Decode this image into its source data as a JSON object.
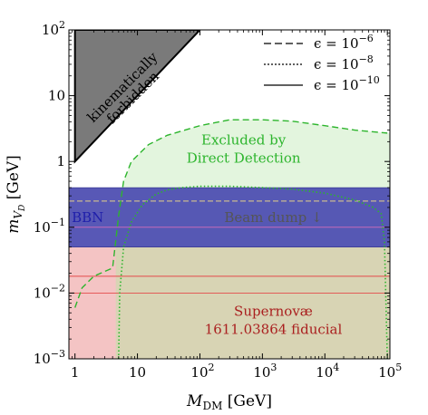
{
  "chart_data": {
    "type": "area",
    "title": "",
    "xlabel_main": "M",
    "xlabel_sub": "DM",
    "xlabel_unit": " [GeV]",
    "ylabel_main": "m",
    "ylabel_sub": "V",
    "ylabel_subsub": "D",
    "ylabel_unit": " [GeV]",
    "x_scale": "log",
    "y_scale": "log",
    "xlim": [
      0.8,
      110000
    ],
    "ylim": [
      0.001,
      100
    ],
    "x_ticks": [
      {
        "value": 1,
        "base": "1",
        "exp": ""
      },
      {
        "value": 10,
        "base": "10",
        "exp": ""
      },
      {
        "value": 100,
        "base": "10",
        "exp": "2"
      },
      {
        "value": 1000,
        "base": "10",
        "exp": "3"
      },
      {
        "value": 10000,
        "base": "10",
        "exp": "4"
      },
      {
        "value": 100000,
        "base": "10",
        "exp": "5"
      }
    ],
    "y_ticks": [
      {
        "value": 0.001,
        "base": "10",
        "exp": "−3"
      },
      {
        "value": 0.01,
        "base": "10",
        "exp": "−2"
      },
      {
        "value": 0.1,
        "base": "10",
        "exp": "−1"
      },
      {
        "value": 1,
        "base": "1",
        "exp": ""
      },
      {
        "value": 10,
        "base": "10",
        "exp": ""
      },
      {
        "value": 100,
        "base": "10",
        "exp": "2"
      }
    ],
    "legend": {
      "placement": "top-right",
      "entries": [
        {
          "style": "dashed",
          "prefix": "ϵ = 10",
          "exp": "−6"
        },
        {
          "style": "dotted",
          "prefix": "ϵ = 10",
          "exp": "−8"
        },
        {
          "style": "solid",
          "prefix": "ϵ = 10",
          "exp": "−10"
        }
      ]
    },
    "regions": [
      {
        "name": "kinematically-forbidden",
        "label_lines": [
          "kinematically",
          "forbidden"
        ],
        "fill": "#7a7a7a",
        "boundary": [
          [
            1,
            100
          ],
          [
            1,
            1
          ],
          [
            100,
            100
          ]
        ]
      },
      {
        "name": "bbn",
        "label": "BBN",
        "fill": "#4a4ab0",
        "y_range": [
          0.05,
          0.4
        ]
      },
      {
        "name": "supernova",
        "label_lines": [
          "Supernovæ",
          "1611.03864 fiducial"
        ],
        "fill": "#f4c4c4",
        "y_range": [
          0.001,
          0.05
        ],
        "internal_lines_y": [
          0.01,
          0.018
        ]
      }
    ],
    "annotations": [
      {
        "name": "direct-detection",
        "label_lines": [
          "Excluded by",
          "Direct Detection"
        ],
        "color": "#2db52d"
      },
      {
        "name": "beam-dump",
        "label": "Beam dump ↓",
        "color": "#555555"
      }
    ],
    "series": [
      {
        "name": "direct-detection-dashed",
        "style": "dashed",
        "color": "#2db52d",
        "points": [
          [
            1,
            0.006
          ],
          [
            1.3,
            0.012
          ],
          [
            2,
            0.018
          ],
          [
            4,
            0.024
          ],
          [
            5,
            0.15
          ],
          [
            6,
            0.5
          ],
          [
            8,
            1.0
          ],
          [
            15,
            1.8
          ],
          [
            30,
            2.5
          ],
          [
            100,
            3.5
          ],
          [
            300,
            4.3
          ],
          [
            1000,
            4.3
          ],
          [
            3000,
            4.1
          ],
          [
            10000,
            3.5
          ],
          [
            30000,
            3.0
          ],
          [
            100000,
            2.7
          ]
        ]
      },
      {
        "name": "direct-detection-dotted",
        "style": "dotted",
        "color": "#2db52d",
        "points": [
          [
            5,
            0.001
          ],
          [
            5.2,
            0.01
          ],
          [
            6,
            0.05
          ],
          [
            8,
            0.12
          ],
          [
            12,
            0.22
          ],
          [
            20,
            0.32
          ],
          [
            30,
            0.37
          ],
          [
            50,
            0.4
          ],
          [
            100,
            0.42
          ],
          [
            300,
            0.42
          ],
          [
            1000,
            0.4
          ],
          [
            3000,
            0.38
          ],
          [
            10000,
            0.33
          ],
          [
            30000,
            0.26
          ],
          [
            60000,
            0.2
          ],
          [
            80000,
            0.16
          ],
          [
            90000,
            0.06
          ],
          [
            100000,
            0.001
          ]
        ]
      }
    ],
    "colors": {
      "direct_detection_fill": "#e3f5de",
      "olive_overlap": "#d8d4b4",
      "bbn_line": "#c46ab8",
      "beam_dump_line": "#c8b890",
      "supernova_line": "#e44b4b",
      "supernova_text": "#aa1f1f",
      "bbn_text": "#1f1faa"
    }
  }
}
